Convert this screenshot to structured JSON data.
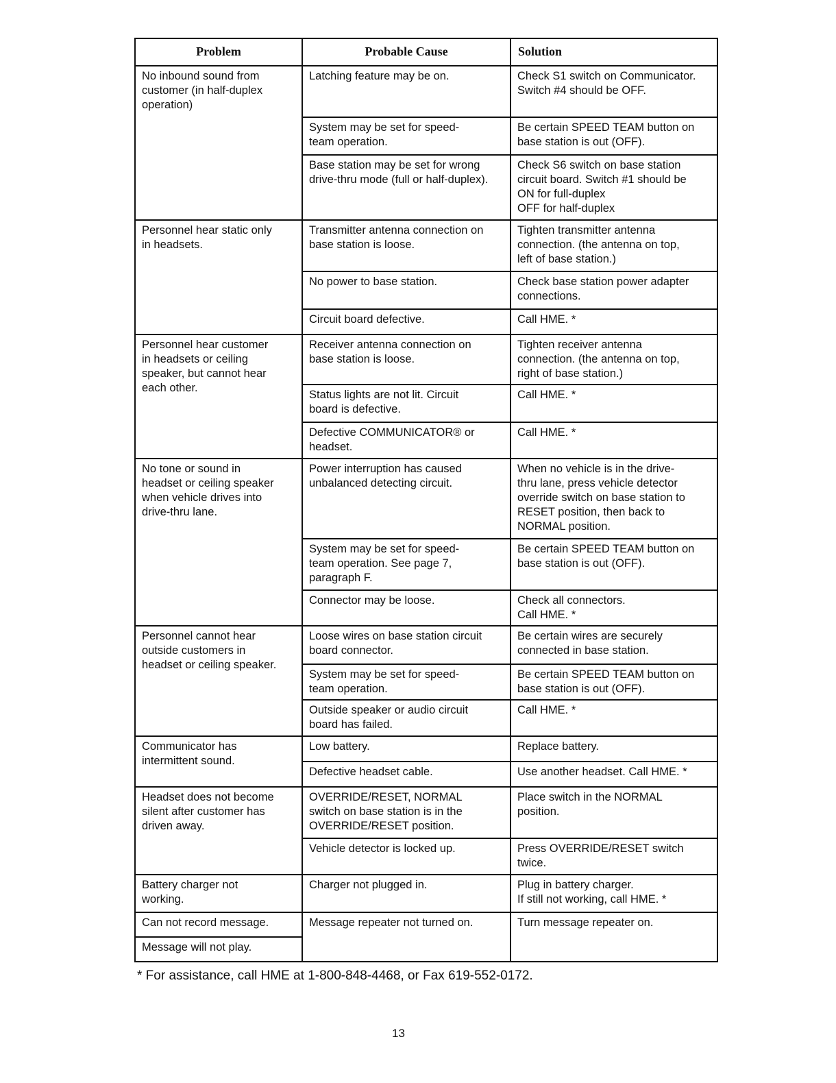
{
  "headers": {
    "problem": "Problem",
    "cause": "Probable Cause",
    "solution": "Solution"
  },
  "groups": [
    {
      "problem": "No inbound sound from\ncustomer (in half-duplex\noperation)",
      "rows": [
        {
          "cause": "Latching feature may be on.",
          "solution": "Check S1 switch on Communicator.\nSwitch #4 should be OFF."
        },
        {
          "cause": "System may be set for speed-\nteam operation.",
          "solution": "Be certain SPEED TEAM button on\nbase station is out (OFF)."
        },
        {
          "cause": "Base station may be set for wrong\ndrive-thru mode (full or half-duplex).",
          "solution": "Check S6 switch on base station\ncircuit board.  Switch #1 should be\n          ON for full-duplex\n          OFF for half-duplex"
        }
      ]
    },
    {
      "problem": "Personnel hear static only\nin headsets.",
      "rows": [
        {
          "cause": "Transmitter antenna connection on\nbase station is loose.",
          "solution": "Tighten transmitter antenna\nconnection.  (the antenna on top,\nleft of base station.)"
        },
        {
          "cause": "No power to base station.",
          "solution": "Check base station power adapter\nconnections."
        },
        {
          "cause": "Circuit board defective.",
          "solution": "Call HME. *"
        }
      ]
    },
    {
      "problem": "Personnel hear customer\nin headsets or ceiling\nspeaker, but cannot hear\neach other.",
      "rows": [
        {
          "cause": "Receiver antenna connection on\nbase station is loose.",
          "solution": "Tighten receiver antenna\nconnection.  (the antenna on top,\nright of base station.)"
        },
        {
          "cause": "Status lights are not lit.  Circuit\nboard is defective.",
          "solution": "Call HME. *"
        },
        {
          "cause": "Defective COMMUNICATOR® or\nheadset.",
          "solution": "Call HME. *"
        }
      ]
    },
    {
      "problem": "No tone or sound in\nheadset or ceiling speaker\nwhen vehicle drives into\ndrive-thru lane.",
      "rows": [
        {
          "cause": "Power interruption has caused\nunbalanced detecting circuit.",
          "solution": "When no vehicle is in the drive-\nthru lane, press vehicle detector\noverride switch on base station to\nRESET position, then back to\nNORMAL position."
        },
        {
          "cause": "System may be set for speed-\nteam operation.  See page 7,\nparagraph F.",
          "solution": "Be certain SPEED TEAM button on\nbase station is out (OFF)."
        },
        {
          "cause": "Connector may be loose.",
          "solution": "Check all connectors.\nCall HME. *"
        }
      ]
    },
    {
      "problem": "Personnel cannot hear\noutside customers in\nheadset or ceiling speaker.",
      "rows": [
        {
          "cause": "Loose wires on base station circuit\nboard connector.",
          "solution": "Be certain wires are securely\nconnected in base station."
        },
        {
          "cause": "System may be set for speed-\nteam operation.",
          "solution": "Be certain SPEED TEAM button on\nbase station is out (OFF)."
        },
        {
          "cause": "Outside speaker or audio circuit\nboard has failed.",
          "solution": "Call HME. *"
        }
      ]
    },
    {
      "problem": "Communicator has\nintermittent sound.",
      "rows": [
        {
          "cause": "Low battery.",
          "solution": "Replace battery."
        },
        {
          "cause": "Defective headset cable.",
          "solution": "Use another headset.  Call HME. *"
        }
      ]
    },
    {
      "problem": "Headset does not become\nsilent after customer has\ndriven away.",
      "rows": [
        {
          "cause": "OVERRIDE/RESET, NORMAL\nswitch on base station is in the\nOVERRIDE/RESET position.",
          "solution": "Place switch in the NORMAL\nposition."
        },
        {
          "cause": "Vehicle detector is locked up.",
          "solution": "Press OVERRIDE/RESET switch\ntwice."
        }
      ]
    },
    {
      "problem": "Battery charger not\nworking.",
      "rows": [
        {
          "cause": "Charger not plugged in.",
          "solution": "Plug in battery charger.\nIf still not working, call HME. *"
        }
      ]
    }
  ],
  "last": {
    "problem_a": "Can not record message.",
    "problem_b": "Message will not play.",
    "cause": "Message repeater not turned on.",
    "solution": "Turn message repeater on."
  },
  "footnote": "*  For assistance, call HME at 1-800-848-4468, or Fax 619-552-0172.",
  "page_number": "13"
}
